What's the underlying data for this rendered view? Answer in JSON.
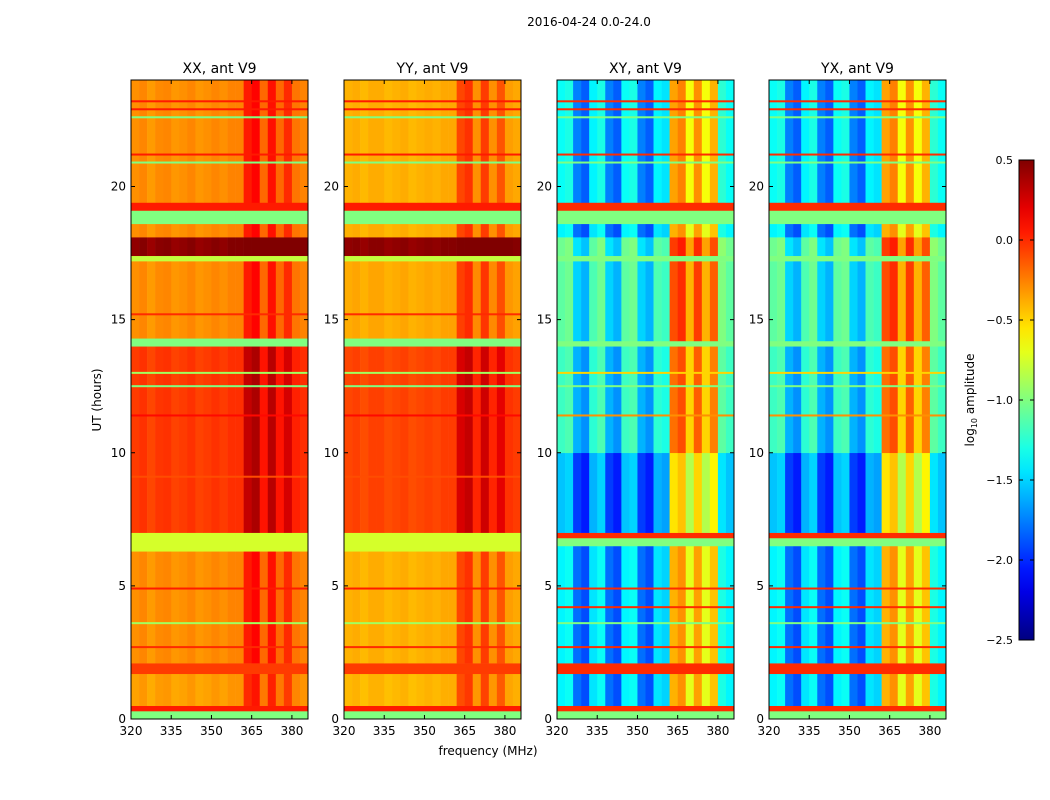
{
  "chart_data": {
    "type": "heatmap",
    "title": "2016-04-24 0.0-24.0",
    "xlabel": "frequency (MHz)",
    "ylabel": "UT (hours)",
    "xlim": [
      320,
      386
    ],
    "ylim": [
      0,
      24
    ],
    "xticks": [
      "320",
      "335",
      "350",
      "365",
      "380"
    ],
    "xtick_values": [
      320,
      335,
      350,
      365,
      380
    ],
    "yticks": [
      "0",
      "5",
      "10",
      "15",
      "20"
    ],
    "ytick_values": [
      0,
      5,
      10,
      15,
      20
    ],
    "colorbar": {
      "label": "log10 amplitude",
      "label_base": "log",
      "label_sub": "10",
      "label_rest": " amplitude",
      "range": [
        -2.5,
        0.5
      ],
      "ticks": [
        "0.5",
        "0.0",
        "−0.5",
        "−1.0",
        "−1.5",
        "−2.0",
        "−2.5"
      ],
      "tick_values": [
        0.5,
        0.0,
        -0.5,
        -1.0,
        -1.5,
        -2.0,
        -2.5
      ],
      "colormap": "jet"
    },
    "freq_bins_mhz": [
      320,
      323,
      326,
      329,
      332,
      335,
      338,
      341,
      344,
      347,
      350,
      353,
      356,
      359,
      362,
      365,
      368,
      371,
      374,
      377,
      380,
      383
    ],
    "panels": [
      {
        "title": "XX, ant V9",
        "freq_offset": [
          0,
          0.03,
          -0.03,
          0.02,
          0.03,
          -0.02,
          0,
          0.03,
          -0.02,
          0,
          0.03,
          0,
          0.04,
          0.04,
          0.35,
          0.42,
          0.12,
          0.38,
          0.12,
          0.3,
          0.08,
          0.04
        ],
        "time_segments": [
          [
            0,
            0.3,
            -1.0,
            1
          ],
          [
            0.3,
            0.5,
            0.05,
            1
          ],
          [
            0.5,
            1.7,
            -0.35,
            0
          ],
          [
            1.7,
            2.1,
            -0.05,
            1
          ],
          [
            2.1,
            6.3,
            -0.3,
            0
          ],
          [
            6.3,
            7.0,
            -0.75,
            1
          ],
          [
            7.0,
            14.0,
            -0.05,
            0
          ],
          [
            14.0,
            14.3,
            -1.0,
            1
          ],
          [
            14.3,
            17.2,
            -0.3,
            0
          ],
          [
            17.2,
            17.4,
            -0.8,
            1
          ],
          [
            17.4,
            18.1,
            0.45,
            0
          ],
          [
            18.1,
            18.6,
            -0.3,
            0
          ],
          [
            18.6,
            19.1,
            -1.0,
            1
          ],
          [
            19.1,
            19.4,
            0.05,
            1
          ],
          [
            19.4,
            24,
            -0.3,
            0
          ]
        ],
        "lines": [
          [
            2.7,
            0.0
          ],
          [
            3.6,
            -0.9
          ],
          [
            4.9,
            0.05
          ],
          [
            9.1,
            -0.1
          ],
          [
            11.4,
            0.1
          ],
          [
            12.5,
            -1.0
          ],
          [
            13.0,
            -0.9
          ],
          [
            15.2,
            0.0
          ],
          [
            20.9,
            -1.0
          ],
          [
            21.2,
            0.05
          ],
          [
            22.6,
            -1.0
          ],
          [
            22.9,
            0.05
          ],
          [
            23.2,
            0.05
          ]
        ]
      },
      {
        "title": "YY, ant V9",
        "freq_offset": [
          0,
          0.02,
          -0.02,
          0.02,
          0.02,
          -0.02,
          0,
          0.02,
          -0.02,
          0,
          0.02,
          0,
          0.03,
          0.03,
          0.32,
          0.38,
          0.1,
          0.35,
          0.1,
          0.28,
          0.06,
          0.03
        ],
        "time_segments": [
          [
            0,
            0.3,
            -1.0,
            1
          ],
          [
            0.3,
            0.5,
            0.05,
            1
          ],
          [
            0.5,
            1.7,
            -0.42,
            0
          ],
          [
            1.7,
            2.1,
            -0.05,
            1
          ],
          [
            2.1,
            6.3,
            -0.4,
            0
          ],
          [
            6.3,
            7.0,
            -0.75,
            1
          ],
          [
            7.0,
            14.0,
            -0.08,
            0
          ],
          [
            14.0,
            14.3,
            -1.0,
            1
          ],
          [
            14.3,
            17.2,
            -0.38,
            0
          ],
          [
            17.2,
            17.4,
            -0.8,
            1
          ],
          [
            17.4,
            18.1,
            0.45,
            0
          ],
          [
            18.1,
            18.6,
            -0.4,
            0
          ],
          [
            18.6,
            19.1,
            -1.0,
            1
          ],
          [
            19.1,
            19.4,
            0.05,
            1
          ],
          [
            19.4,
            24,
            -0.4,
            0
          ]
        ],
        "lines": [
          [
            2.7,
            0.0
          ],
          [
            3.6,
            -0.9
          ],
          [
            4.9,
            0.05
          ],
          [
            9.1,
            -0.1
          ],
          [
            11.4,
            0.1
          ],
          [
            12.5,
            -1.0
          ],
          [
            13.0,
            -0.9
          ],
          [
            15.2,
            0.0
          ],
          [
            20.9,
            -1.0
          ],
          [
            21.2,
            0.05
          ],
          [
            22.6,
            -1.0
          ],
          [
            22.9,
            0.05
          ],
          [
            23.2,
            0.05
          ]
        ]
      },
      {
        "title": "XY, ant V9",
        "freq_offset": [
          0.5,
          0.55,
          0.1,
          0.0,
          0.45,
          0.55,
          0.1,
          0.0,
          0.5,
          0.55,
          0.1,
          0.0,
          0.45,
          0.4,
          1.5,
          1.6,
          1.2,
          1.55,
          1.2,
          1.45,
          0.6,
          0.5
        ],
        "time_segments": [
          [
            0,
            0.3,
            -1.0,
            1
          ],
          [
            0.3,
            0.5,
            0.0,
            1
          ],
          [
            0.5,
            1.7,
            -1.9,
            0
          ],
          [
            1.7,
            2.1,
            0.0,
            1
          ],
          [
            2.1,
            6.5,
            -1.9,
            0
          ],
          [
            6.5,
            6.8,
            -1.0,
            1
          ],
          [
            6.8,
            7.0,
            0.0,
            1
          ],
          [
            7.0,
            10.0,
            -2.05,
            0
          ],
          [
            10.0,
            14.0,
            -1.7,
            0
          ],
          [
            14.0,
            14.2,
            -1.0,
            1
          ],
          [
            14.2,
            17.2,
            -1.6,
            0
          ],
          [
            17.2,
            17.4,
            -1.0,
            1
          ],
          [
            17.4,
            18.1,
            -1.55,
            0
          ],
          [
            18.1,
            18.6,
            -1.9,
            0
          ],
          [
            18.6,
            19.1,
            -1.0,
            1
          ],
          [
            19.1,
            19.4,
            0.0,
            1
          ],
          [
            19.4,
            24,
            -1.85,
            0
          ]
        ],
        "lines": [
          [
            2.7,
            0.0
          ],
          [
            3.6,
            -1.0
          ],
          [
            4.2,
            0.0
          ],
          [
            4.9,
            0.0
          ],
          [
            11.4,
            -0.3
          ],
          [
            12.5,
            -1.0
          ],
          [
            13.0,
            -0.5
          ],
          [
            20.9,
            -1.0
          ],
          [
            21.2,
            0.0
          ],
          [
            22.6,
            -1.0
          ],
          [
            22.9,
            0.0
          ],
          [
            23.2,
            0.0
          ]
        ]
      },
      {
        "title": "YX, ant V9",
        "freq_offset": [
          0.5,
          0.55,
          0.1,
          0.0,
          0.45,
          0.55,
          0.1,
          0.0,
          0.5,
          0.55,
          0.1,
          0.0,
          0.45,
          0.4,
          1.5,
          1.6,
          1.2,
          1.55,
          1.2,
          1.45,
          0.6,
          0.5
        ],
        "time_segments": [
          [
            0,
            0.3,
            -1.0,
            1
          ],
          [
            0.3,
            0.5,
            0.0,
            1
          ],
          [
            0.5,
            1.7,
            -1.9,
            0
          ],
          [
            1.7,
            2.1,
            0.0,
            1
          ],
          [
            2.1,
            6.5,
            -1.9,
            0
          ],
          [
            6.5,
            6.8,
            -1.0,
            1
          ],
          [
            6.8,
            7.0,
            0.0,
            1
          ],
          [
            7.0,
            10.0,
            -2.05,
            0
          ],
          [
            10.0,
            14.0,
            -1.7,
            0
          ],
          [
            14.0,
            14.2,
            -1.0,
            1
          ],
          [
            14.2,
            17.2,
            -1.6,
            0
          ],
          [
            17.2,
            17.4,
            -1.0,
            1
          ],
          [
            17.4,
            18.1,
            -1.55,
            0
          ],
          [
            18.1,
            18.6,
            -1.9,
            0
          ],
          [
            18.6,
            19.1,
            -1.0,
            1
          ],
          [
            19.1,
            19.4,
            0.0,
            1
          ],
          [
            19.4,
            24,
            -1.85,
            0
          ]
        ],
        "lines": [
          [
            2.7,
            0.0
          ],
          [
            3.6,
            -1.0
          ],
          [
            4.2,
            0.0
          ],
          [
            4.9,
            0.0
          ],
          [
            11.4,
            -0.3
          ],
          [
            12.5,
            -1.0
          ],
          [
            13.0,
            -0.5
          ],
          [
            20.9,
            -1.0
          ],
          [
            21.2,
            0.0
          ],
          [
            22.6,
            -1.0
          ],
          [
            22.9,
            0.0
          ],
          [
            23.2,
            0.0
          ]
        ]
      }
    ]
  }
}
